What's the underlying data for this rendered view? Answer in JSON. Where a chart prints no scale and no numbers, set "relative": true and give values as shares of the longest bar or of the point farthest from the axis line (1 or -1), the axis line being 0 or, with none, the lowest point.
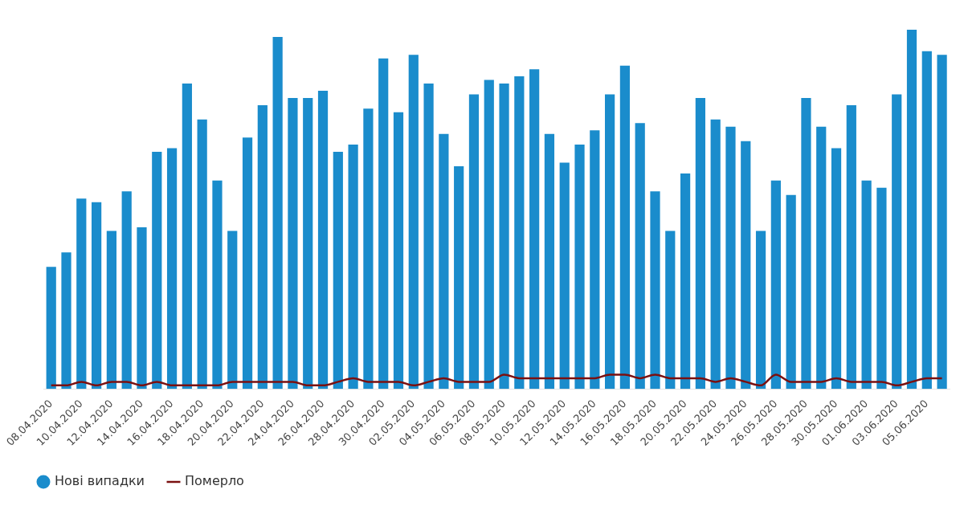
{
  "chart_data": {
    "type": "bar",
    "relative": true,
    "legend": "bottom left",
    "categories": [
      "08.04.2020",
      null,
      "10.04.2020",
      null,
      "12.04.2020",
      null,
      "14.04.2020",
      null,
      "16.04.2020",
      null,
      "18.04.2020",
      null,
      "20.04.2020",
      null,
      "22.04.2020",
      null,
      "24.04.2020",
      null,
      "26.04.2020",
      null,
      "28.04.2020",
      null,
      "30.04.2020",
      null,
      "02.05.2020",
      null,
      "04.05.2020",
      null,
      "06.05.2020",
      null,
      "08.05.2020",
      null,
      "10.05.2020",
      null,
      "12.05.2020",
      null,
      "14.05.2020",
      null,
      "16.05.2020",
      null,
      "18.05.2020",
      null,
      "20.05.2020",
      null,
      "22.05.2020",
      null,
      "24.05.2020",
      null,
      "26.05.2020",
      null,
      "28.05.2020",
      null,
      "30.05.2020",
      null,
      "01.06.2020",
      null,
      "03.06.2020",
      null,
      "05.06.2020",
      null
    ],
    "series": [
      {
        "name": "Нові випадки",
        "color": "#1a8ccc",
        "values": [
          0.34,
          0.38,
          0.53,
          0.52,
          0.44,
          0.55,
          0.45,
          0.66,
          0.67,
          0.85,
          0.75,
          0.58,
          0.44,
          0.7,
          0.79,
          0.98,
          0.81,
          0.81,
          0.83,
          0.66,
          0.68,
          0.78,
          0.92,
          0.77,
          0.93,
          0.85,
          0.71,
          0.62,
          0.82,
          0.86,
          0.85,
          0.87,
          0.89,
          0.71,
          0.63,
          0.68,
          0.72,
          0.82,
          0.9,
          0.74,
          0.55,
          0.44,
          0.6,
          0.81,
          0.75,
          0.73,
          0.69,
          0.44,
          0.58,
          0.54,
          0.81,
          0.73,
          0.67,
          0.79,
          0.58,
          0.56,
          0.82,
          1,
          0.94,
          0.93
        ]
      },
      {
        "name": "Померло",
        "type": "line",
        "color": "#7a1010",
        "values": [
          0.01,
          0.01,
          0.02,
          0.01,
          0.02,
          0.02,
          0.01,
          0.02,
          0.01,
          0.01,
          0.01,
          0.01,
          0.02,
          0.02,
          0.02,
          0.02,
          0.02,
          0.01,
          0.01,
          0.02,
          0.03,
          0.02,
          0.02,
          0.02,
          0.01,
          0.02,
          0.03,
          0.02,
          0.02,
          0.02,
          0.04,
          0.03,
          0.03,
          0.03,
          0.03,
          0.03,
          0.03,
          0.04,
          0.04,
          0.03,
          0.04,
          0.03,
          0.03,
          0.03,
          0.02,
          0.03,
          0.02,
          0.01,
          0.04,
          0.02,
          0.02,
          0.02,
          0.03,
          0.02,
          0.02,
          0.02,
          0.01,
          0.02,
          0.03,
          0.03
        ]
      }
    ]
  }
}
